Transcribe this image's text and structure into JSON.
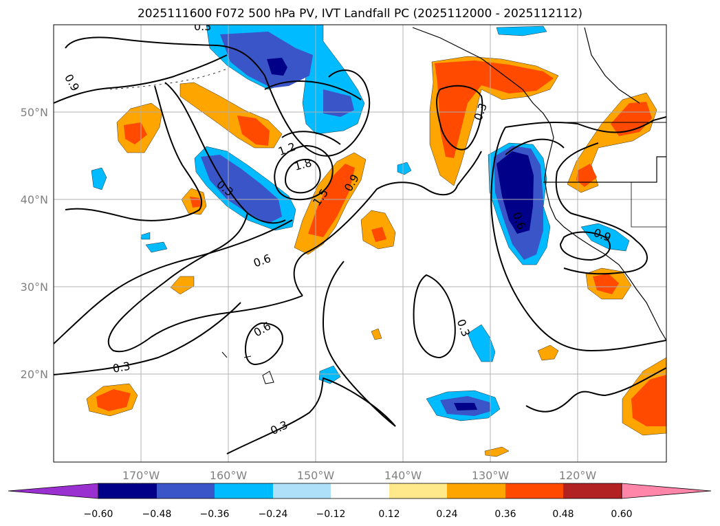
{
  "title": "2025111600 F072 500 hPa PV, IVT Landfall PC (2025112000 - 2025112112)",
  "axes": {
    "lat_labels": [
      "50°N",
      "40°N",
      "30°N",
      "20°N"
    ],
    "lon_labels": [
      "170°W",
      "160°W",
      "150°W",
      "140°W",
      "130°W",
      "120°W"
    ]
  },
  "contour_labels": [
    "0.9",
    "0.3",
    "1.2",
    "1.8",
    "1.5",
    "0.9",
    "0.3",
    "0.6",
    "0.6",
    "0.3",
    "0.3",
    "0.3",
    "0.6",
    "0.9",
    "0.3",
    "0.3"
  ],
  "colorbar": {
    "ticks": [
      "−0.60",
      "−0.48",
      "−0.36",
      "−0.24",
      "−0.12",
      "0.12",
      "0.24",
      "0.36",
      "0.48",
      "0.60"
    ],
    "colors": [
      "#9b30d0",
      "#000088",
      "#3a55c8",
      "#00bbff",
      "#aee0fa",
      "#ffffff",
      "#ffe98a",
      "#ffa500",
      "#ff4a00",
      "#b22222",
      "#ff85a9"
    ]
  }
}
